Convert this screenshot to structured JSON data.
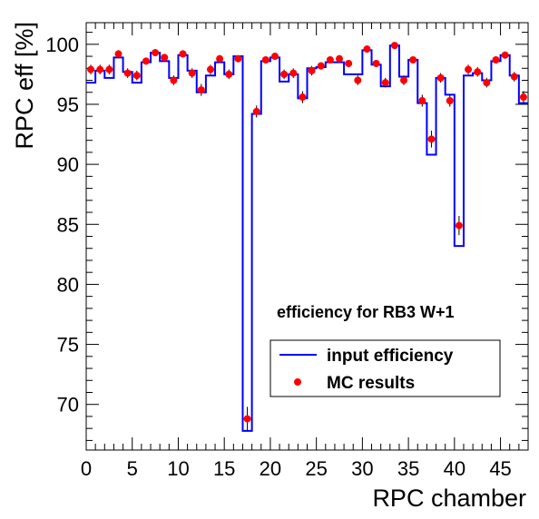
{
  "chart_data": {
    "type": "line",
    "xlabel": "RPC chamber",
    "ylabel": "RPC eff [%]",
    "xlim": [
      0,
      48
    ],
    "ylim": [
      66.2,
      101.8
    ],
    "x_ticks": [
      0,
      5,
      10,
      15,
      20,
      25,
      30,
      35,
      40,
      45
    ],
    "y_ticks": [
      70,
      75,
      80,
      85,
      90,
      95,
      100
    ],
    "annotation": "efficiency for RB3 W+1",
    "grid": false,
    "legend_position": "bottom-right",
    "series": [
      {
        "name": "input efficiency",
        "style": "step",
        "color": "#0000ff",
        "bin_edges": [
          0,
          1,
          2,
          3,
          4,
          5,
          6,
          7,
          8,
          9,
          10,
          11,
          12,
          13,
          14,
          15,
          16,
          17,
          18,
          19,
          20,
          21,
          22,
          23,
          24,
          25,
          26,
          27,
          28,
          29,
          30,
          31,
          32,
          33,
          34,
          35,
          36,
          37,
          38,
          39,
          40,
          41,
          42,
          43,
          44,
          45,
          46,
          47,
          48
        ],
        "values": [
          96.8,
          97.8,
          97.2,
          98.9,
          97.7,
          96.8,
          98.5,
          99.3,
          98.6,
          97.2,
          99.1,
          97.8,
          96.0,
          97.4,
          98.5,
          97.5,
          99.0,
          67.8,
          94.2,
          98.6,
          98.9,
          96.9,
          97.5,
          95.5,
          98.0,
          98.1,
          98.5,
          98.5,
          97.5,
          97.5,
          99.5,
          98.3,
          96.5,
          99.9,
          97.3,
          98.7,
          95.1,
          90.8,
          97.2,
          95.8,
          83.2,
          97.4,
          97.6,
          97.0,
          98.6,
          99.1,
          97.4,
          95.1
        ]
      },
      {
        "name": "MC results",
        "style": "markers",
        "color": "#ff0000",
        "x": [
          0.5,
          1.5,
          2.5,
          3.5,
          4.5,
          5.5,
          6.5,
          7.5,
          8.5,
          9.5,
          10.5,
          11.5,
          12.5,
          13.5,
          14.5,
          15.5,
          16.5,
          17.5,
          18.5,
          19.5,
          20.5,
          21.5,
          22.5,
          23.5,
          24.5,
          25.5,
          26.5,
          27.5,
          28.5,
          29.5,
          30.5,
          31.5,
          32.5,
          33.5,
          34.5,
          35.5,
          36.5,
          37.5,
          38.5,
          39.5,
          40.5,
          41.5,
          42.5,
          43.5,
          44.5,
          45.5,
          46.5,
          47.5
        ],
        "values": [
          97.9,
          97.9,
          97.9,
          99.2,
          97.6,
          97.4,
          98.6,
          99.3,
          98.9,
          97.0,
          99.2,
          97.6,
          96.2,
          97.9,
          98.8,
          97.5,
          98.8,
          68.8,
          94.4,
          98.7,
          99.0,
          97.5,
          97.6,
          95.6,
          97.8,
          98.2,
          98.7,
          98.8,
          98.4,
          97.0,
          99.6,
          98.4,
          96.8,
          99.9,
          97.0,
          98.7,
          95.3,
          92.1,
          97.2,
          95.3,
          84.9,
          97.9,
          97.7,
          96.8,
          98.7,
          99.1,
          97.3,
          95.6
        ],
        "errors": [
          0.4,
          0.4,
          0.4,
          0.3,
          0.4,
          0.4,
          0.3,
          0.3,
          0.3,
          0.4,
          0.3,
          0.4,
          0.5,
          0.4,
          0.3,
          0.4,
          0.3,
          1.0,
          0.5,
          0.3,
          0.3,
          0.4,
          0.4,
          0.5,
          0.4,
          0.3,
          0.3,
          0.3,
          0.3,
          0.4,
          0.3,
          0.3,
          0.4,
          0.2,
          0.4,
          0.3,
          0.5,
          0.7,
          0.4,
          0.5,
          0.8,
          0.4,
          0.4,
          0.4,
          0.3,
          0.3,
          0.4,
          0.5
        ]
      }
    ]
  }
}
